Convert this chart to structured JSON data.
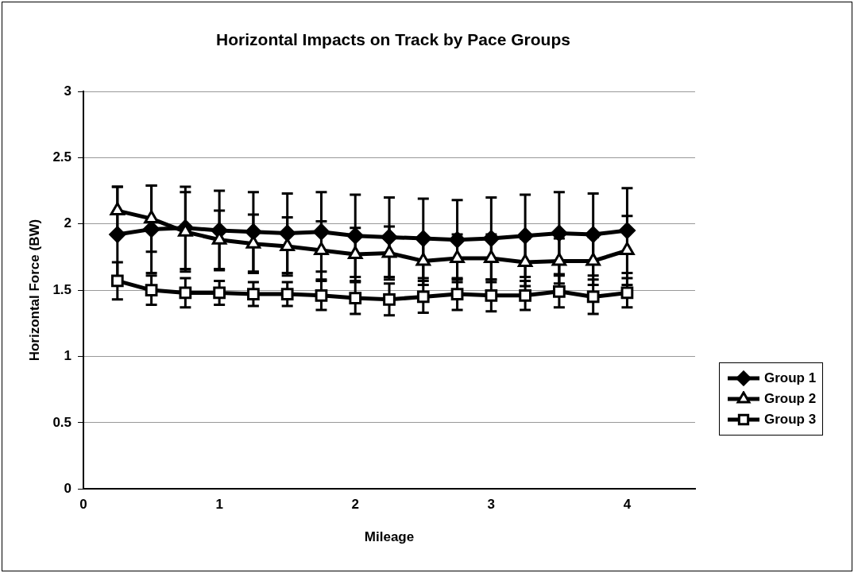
{
  "chart_data": {
    "type": "line",
    "title": "Horizontal Impacts on Track by Pace Groups",
    "xlabel": "Mileage",
    "ylabel": "Horizontal Force (BW)",
    "x": [
      0.25,
      0.5,
      0.75,
      1,
      1.25,
      1.5,
      1.75,
      2,
      2.25,
      2.5,
      2.75,
      3,
      3.25,
      3.5,
      3.75,
      4
    ],
    "xlim": [
      0,
      4.5
    ],
    "xticks": [
      0,
      1,
      2,
      3,
      4
    ],
    "ylim": [
      0,
      3
    ],
    "yticks": [
      0,
      0.5,
      1,
      1.5,
      2,
      2.5,
      3
    ],
    "grid": "y",
    "legend": "right",
    "line_style": "solid",
    "series": [
      {
        "name": "Group 1",
        "color": "#000000",
        "marker": "diamond",
        "values": [
          1.92,
          1.96,
          1.97,
          1.95,
          1.94,
          1.93,
          1.94,
          1.91,
          1.9,
          1.89,
          1.88,
          1.89,
          1.91,
          1.93,
          1.92,
          1.95
        ],
        "errors": [
          0.36,
          0.33,
          0.31,
          0.3,
          0.3,
          0.3,
          0.3,
          0.31,
          0.3,
          0.3,
          0.3,
          0.31,
          0.31,
          0.31,
          0.31,
          0.32
        ]
      },
      {
        "name": "Group 2",
        "color": "#000000",
        "marker": "triangle",
        "values": [
          2.1,
          2.04,
          1.94,
          1.88,
          1.85,
          1.83,
          1.8,
          1.77,
          1.78,
          1.72,
          1.74,
          1.74,
          1.71,
          1.72,
          1.72,
          1.8
        ],
        "errors": [
          0.18,
          0.25,
          0.3,
          0.22,
          0.22,
          0.22,
          0.22,
          0.2,
          0.2,
          0.18,
          0.18,
          0.18,
          0.18,
          0.17,
          0.18,
          0.26
        ]
      },
      {
        "name": "Group 3",
        "color": "#000000",
        "marker": "square",
        "values": [
          1.57,
          1.5,
          1.48,
          1.48,
          1.47,
          1.47,
          1.46,
          1.44,
          1.43,
          1.45,
          1.47,
          1.46,
          1.46,
          1.49,
          1.45,
          1.48
        ],
        "errors": [
          0.14,
          0.11,
          0.11,
          0.09,
          0.09,
          0.09,
          0.11,
          0.12,
          0.12,
          0.12,
          0.12,
          0.12,
          0.11,
          0.12,
          0.13,
          0.11
        ]
      }
    ]
  }
}
